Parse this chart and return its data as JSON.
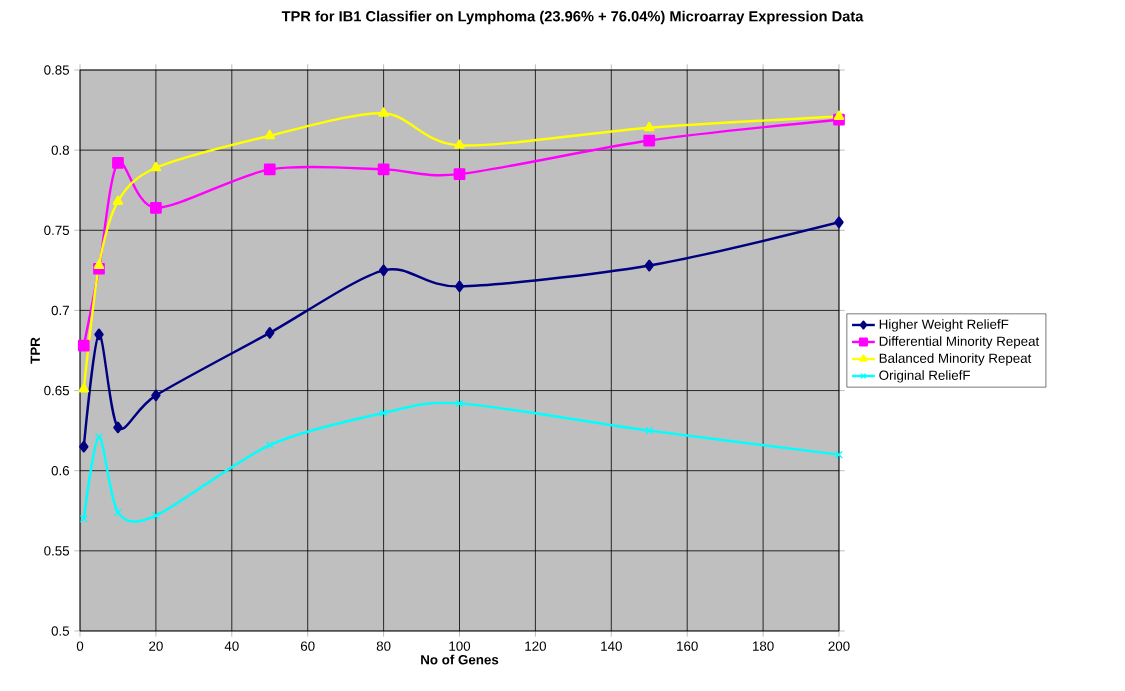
{
  "chart_data": {
    "type": "line",
    "title": "TPR for IB1 Classifier on Lymphoma (23.96% + 76.04%) Microarray Expression Data",
    "xlabel": "No of Genes",
    "ylabel": "TPR",
    "x": [
      1,
      5,
      10,
      20,
      50,
      80,
      100,
      150,
      200
    ],
    "series": [
      {
        "name": "Higher Weight ReliefF",
        "color": "#000080",
        "marker": "diamond",
        "values": [
          0.615,
          0.685,
          0.627,
          0.647,
          0.686,
          0.725,
          0.715,
          0.728,
          0.755
        ]
      },
      {
        "name": "Differential Minority Repeat",
        "color": "#ff00ff",
        "marker": "square",
        "values": [
          0.678,
          0.726,
          0.792,
          0.764,
          0.788,
          0.788,
          0.785,
          0.806,
          0.819
        ]
      },
      {
        "name": "Balanced Minority Repeat",
        "color": "#ffff00",
        "marker": "triangle",
        "values": [
          0.651,
          0.728,
          0.768,
          0.789,
          0.809,
          0.823,
          0.803,
          0.814,
          0.821
        ]
      },
      {
        "name": "Original ReliefF",
        "color": "#00ffff",
        "marker": "cross",
        "values": [
          0.57,
          0.621,
          0.574,
          0.572,
          0.616,
          0.636,
          0.642,
          0.625,
          0.61
        ]
      }
    ],
    "xlim": [
      0,
      200
    ],
    "ylim": [
      0.5,
      0.85
    ],
    "xticks": [
      0,
      20,
      40,
      60,
      80,
      100,
      120,
      140,
      160,
      180,
      200
    ],
    "yticks": [
      0.5,
      0.55,
      0.6,
      0.65,
      0.7,
      0.75,
      0.8,
      0.85
    ],
    "grid": true,
    "legend": "right",
    "line_style": "solid"
  }
}
